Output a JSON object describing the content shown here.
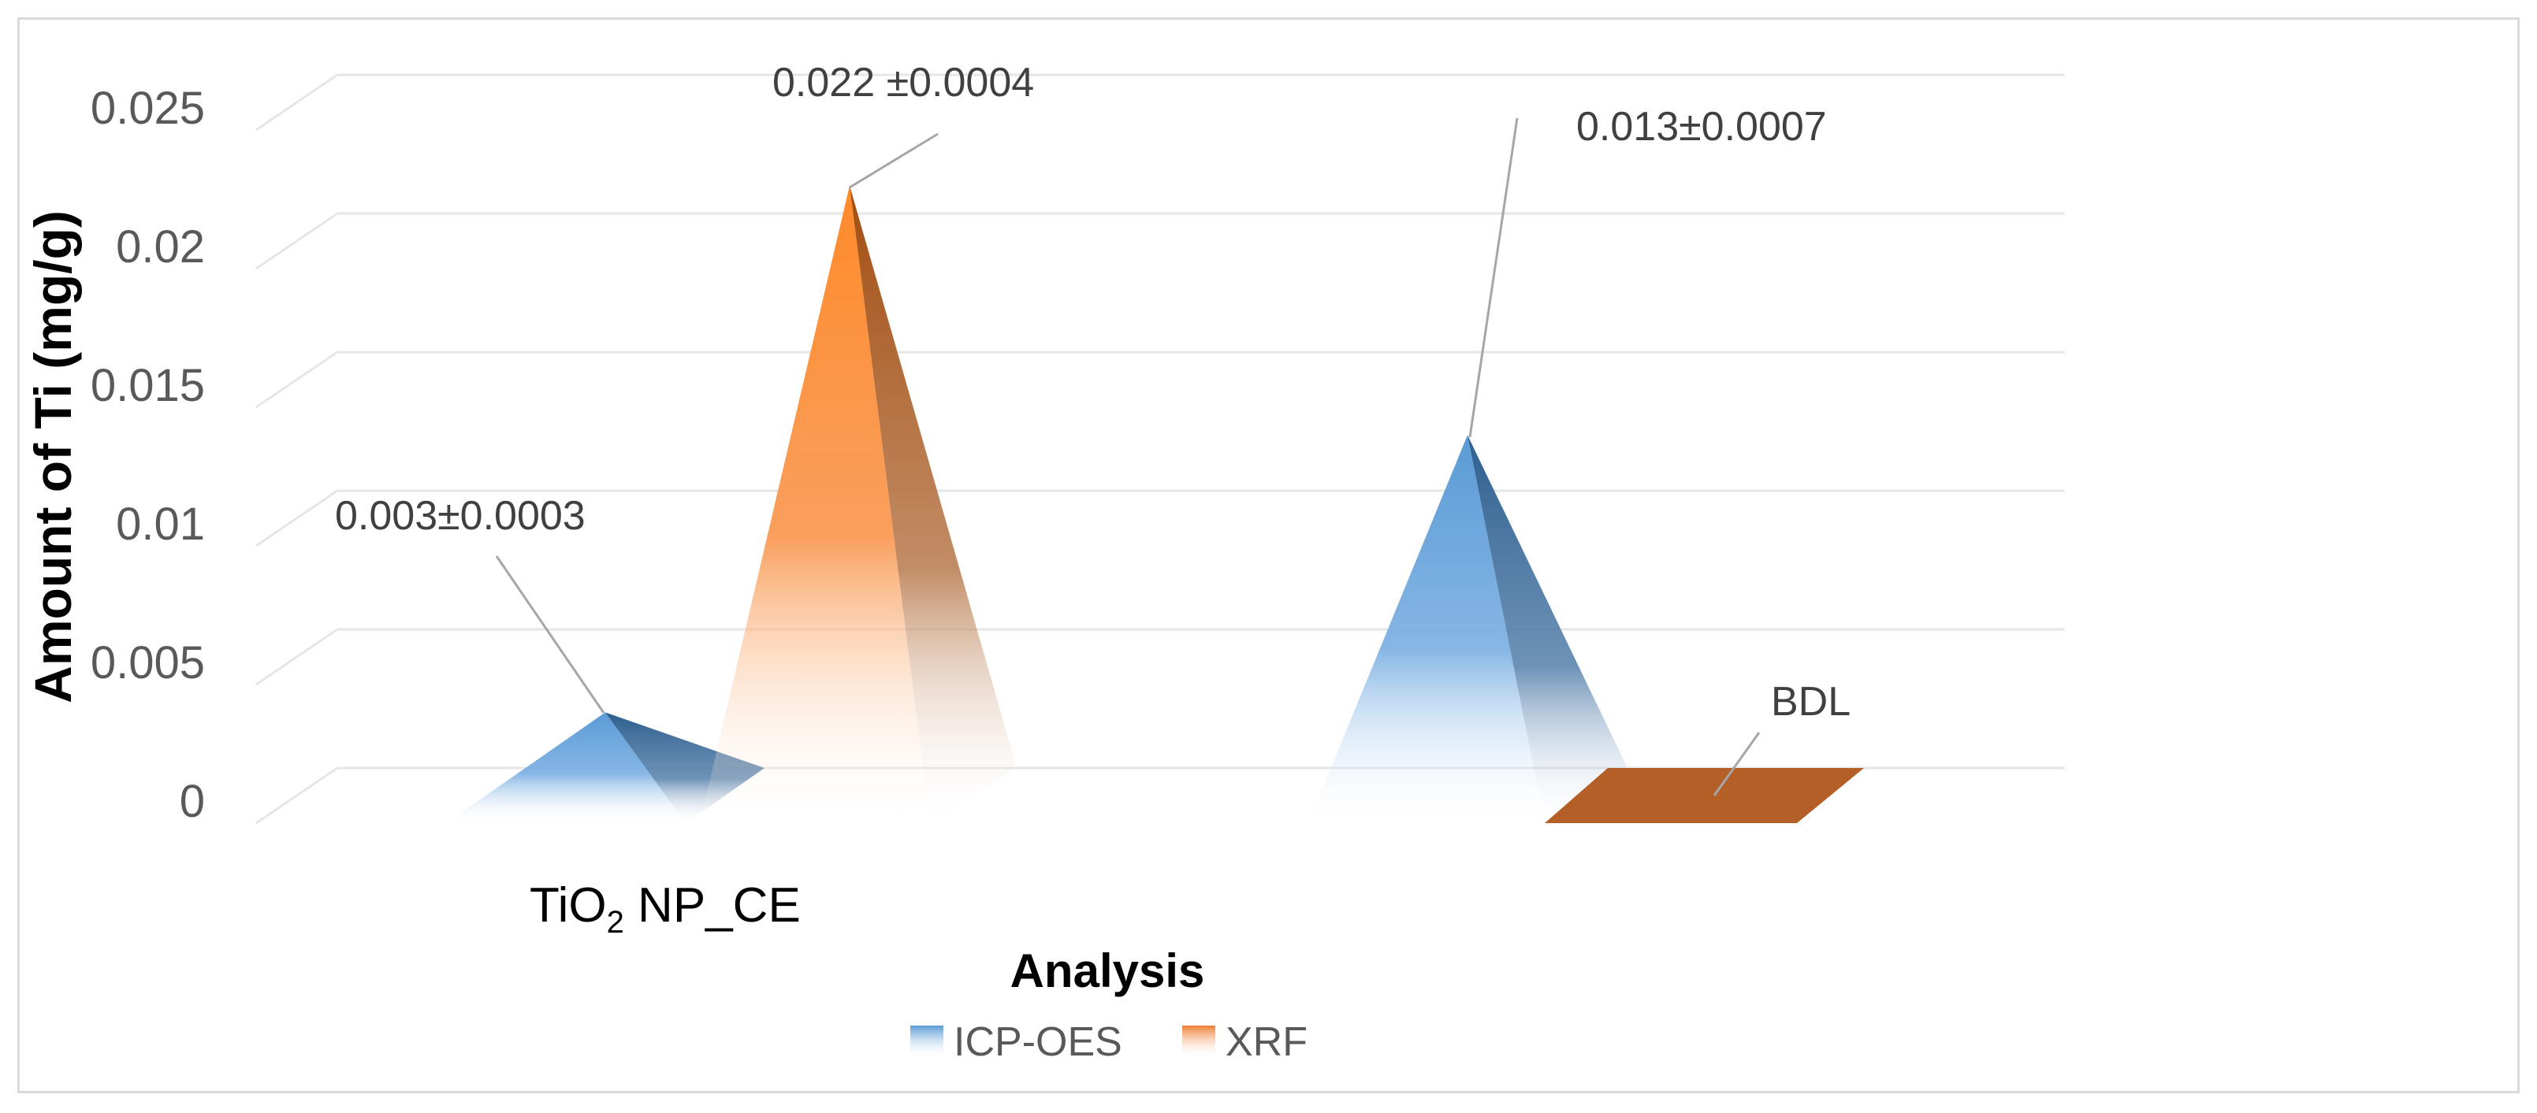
{
  "chart_data": {
    "type": "bar",
    "subtype": "3d-pyramid",
    "title": "",
    "xlabel": "Analysis",
    "ylabel": "Amount of Ti (mg/g)",
    "ylim": [
      0,
      0.025
    ],
    "yticks": [
      "0",
      "0.005",
      "0.01",
      "0.015",
      "0.02",
      "0.025"
    ],
    "grid": true,
    "legend_position": "bottom",
    "categories": [
      {
        "main": "TiO",
        "sub": "2",
        "rest": " NP_CE"
      },
      {
        "main": "",
        "sub": "",
        "rest": ""
      }
    ],
    "series": [
      {
        "name": "ICP-OES",
        "color": "#5b9bd5",
        "values": [
          0.003,
          0.013
        ],
        "labels": [
          "0.003±0.0003",
          "0.013±0.0007"
        ]
      },
      {
        "name": "XRF",
        "color": "#ed7d31",
        "values": [
          0.022,
          0
        ],
        "labels": [
          "0.022 ±0.0004",
          "BDL"
        ]
      }
    ]
  }
}
